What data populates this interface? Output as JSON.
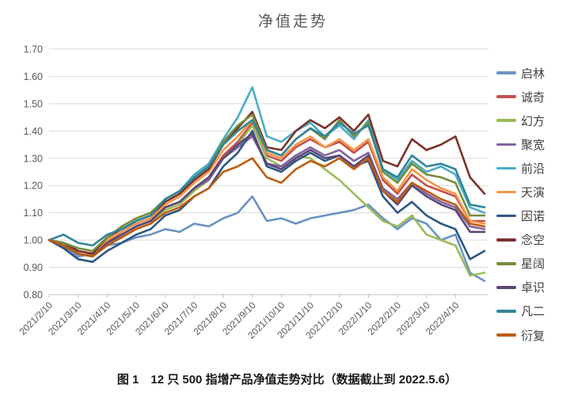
{
  "title": "净值走势",
  "caption": "图 1　12 只 500 指增产品净值走势对比（数据截止到 2022.5.6）",
  "axis": {
    "y_tick_labels": [
      "1.70",
      "1.60",
      "1.50",
      "1.40",
      "1.30",
      "1.20",
      "1.10",
      "1.00",
      "0.90",
      "0.80"
    ],
    "x_tick_labels": [
      "2021/2/10",
      "2021/3/10",
      "2021/4/10",
      "2021/5/10",
      "2021/6/10",
      "2021/7/10",
      "2021/8/10",
      "2021/9/10",
      "2021/10/10",
      "2021/11/10",
      "2021/12/10",
      "2022/1/10",
      "2022/2/10",
      "2022/3/10",
      "2022/4/10"
    ]
  },
  "style_colors": {
    "grid": "#d9d9d9",
    "axis_line": "#bfbfbf",
    "tick_text": "#595959",
    "title_text": "#595959"
  },
  "chart_data": {
    "type": "line",
    "title": "净值走势",
    "xlabel": "",
    "ylabel": "",
    "ylim": [
      0.8,
      1.7
    ],
    "y_tick_step": 0.1,
    "grid": "horizontal",
    "legend_position": "right",
    "x": [
      "2021/2/10",
      "2021/2/25",
      "2021/3/10",
      "2021/3/25",
      "2021/4/10",
      "2021/4/25",
      "2021/5/10",
      "2021/5/25",
      "2021/6/10",
      "2021/6/25",
      "2021/7/10",
      "2021/7/25",
      "2021/8/10",
      "2021/8/25",
      "2021/9/10",
      "2021/9/25",
      "2021/10/10",
      "2021/10/25",
      "2021/11/10",
      "2021/11/25",
      "2021/12/10",
      "2021/12/25",
      "2022/1/10",
      "2022/1/25",
      "2022/2/10",
      "2022/2/25",
      "2022/3/10",
      "2022/3/25",
      "2022/4/10",
      "2022/4/25",
      "2022/5/6"
    ],
    "series": [
      {
        "name": "启林",
        "color": "#6a92c6",
        "values": [
          1.0,
          0.98,
          0.94,
          0.95,
          0.98,
          0.99,
          1.01,
          1.02,
          1.04,
          1.03,
          1.06,
          1.05,
          1.08,
          1.1,
          1.16,
          1.07,
          1.08,
          1.06,
          1.08,
          1.09,
          1.1,
          1.11,
          1.13,
          1.08,
          1.04,
          1.08,
          1.06,
          1.0,
          1.02,
          0.88,
          0.85
        ]
      },
      {
        "name": "诚奇",
        "color": "#c0504d",
        "values": [
          1.0,
          0.97,
          0.96,
          0.95,
          1.0,
          1.02,
          1.05,
          1.07,
          1.12,
          1.14,
          1.19,
          1.23,
          1.31,
          1.36,
          1.43,
          1.31,
          1.29,
          1.34,
          1.37,
          1.34,
          1.36,
          1.32,
          1.36,
          1.22,
          1.17,
          1.24,
          1.2,
          1.18,
          1.16,
          1.07,
          1.07
        ]
      },
      {
        "name": "幻方",
        "color": "#9bbb59",
        "values": [
          1.0,
          0.98,
          0.95,
          0.94,
          0.99,
          1.01,
          1.04,
          1.06,
          1.11,
          1.13,
          1.18,
          1.22,
          1.3,
          1.35,
          1.42,
          1.3,
          1.27,
          1.31,
          1.3,
          1.26,
          1.22,
          1.17,
          1.12,
          1.07,
          1.05,
          1.09,
          1.02,
          1.0,
          0.98,
          0.87,
          0.88
        ]
      },
      {
        "name": "聚宽",
        "color": "#8064a2",
        "values": [
          1.0,
          0.98,
          0.95,
          0.94,
          0.99,
          1.02,
          1.05,
          1.07,
          1.12,
          1.14,
          1.19,
          1.22,
          1.3,
          1.34,
          1.38,
          1.28,
          1.27,
          1.31,
          1.34,
          1.31,
          1.33,
          1.29,
          1.32,
          1.19,
          1.15,
          1.21,
          1.17,
          1.14,
          1.12,
          1.05,
          1.04
        ]
      },
      {
        "name": "前沿",
        "color": "#4bacc6",
        "values": [
          1.0,
          0.98,
          0.96,
          0.95,
          1.0,
          1.03,
          1.07,
          1.09,
          1.15,
          1.18,
          1.24,
          1.28,
          1.37,
          1.45,
          1.56,
          1.38,
          1.36,
          1.4,
          1.43,
          1.38,
          1.42,
          1.37,
          1.44,
          1.26,
          1.22,
          1.29,
          1.25,
          1.27,
          1.24,
          1.12,
          1.1
        ]
      },
      {
        "name": "天演",
        "color": "#f79646",
        "values": [
          1.0,
          0.99,
          0.96,
          0.95,
          1.0,
          1.03,
          1.06,
          1.08,
          1.13,
          1.16,
          1.21,
          1.25,
          1.33,
          1.38,
          1.44,
          1.32,
          1.3,
          1.35,
          1.38,
          1.34,
          1.37,
          1.33,
          1.37,
          1.23,
          1.18,
          1.26,
          1.22,
          1.19,
          1.17,
          1.07,
          1.06
        ]
      },
      {
        "name": "因诺",
        "color": "#2c5784",
        "values": [
          1.0,
          0.97,
          0.93,
          0.92,
          0.96,
          0.99,
          1.02,
          1.04,
          1.09,
          1.11,
          1.16,
          1.19,
          1.27,
          1.32,
          1.4,
          1.27,
          1.25,
          1.29,
          1.32,
          1.29,
          1.31,
          1.27,
          1.29,
          1.16,
          1.1,
          1.14,
          1.09,
          1.06,
          1.04,
          0.93,
          0.96
        ]
      },
      {
        "name": "念空",
        "color": "#7b322c",
        "values": [
          1.0,
          0.99,
          0.96,
          0.95,
          1.01,
          1.04,
          1.07,
          1.09,
          1.14,
          1.17,
          1.22,
          1.26,
          1.35,
          1.41,
          1.47,
          1.34,
          1.33,
          1.4,
          1.44,
          1.41,
          1.45,
          1.4,
          1.46,
          1.29,
          1.27,
          1.37,
          1.33,
          1.35,
          1.38,
          1.23,
          1.17
        ]
      },
      {
        "name": "星阔",
        "color": "#748c3b",
        "values": [
          1.0,
          0.99,
          0.97,
          0.96,
          1.01,
          1.05,
          1.08,
          1.1,
          1.15,
          1.18,
          1.23,
          1.27,
          1.36,
          1.42,
          1.46,
          1.33,
          1.31,
          1.37,
          1.41,
          1.37,
          1.44,
          1.38,
          1.43,
          1.25,
          1.21,
          1.28,
          1.24,
          1.23,
          1.21,
          1.09,
          1.09
        ]
      },
      {
        "name": "卓识",
        "color": "#5c4776",
        "values": [
          1.0,
          0.98,
          0.95,
          0.94,
          0.99,
          1.02,
          1.05,
          1.07,
          1.12,
          1.14,
          1.19,
          1.23,
          1.3,
          1.35,
          1.39,
          1.28,
          1.26,
          1.3,
          1.33,
          1.3,
          1.31,
          1.27,
          1.31,
          1.18,
          1.13,
          1.2,
          1.16,
          1.13,
          1.11,
          1.03,
          1.03
        ]
      },
      {
        "name": "凡二",
        "color": "#31859b",
        "values": [
          1.0,
          1.02,
          0.99,
          0.98,
          1.02,
          1.04,
          1.07,
          1.09,
          1.15,
          1.18,
          1.23,
          1.27,
          1.35,
          1.4,
          1.44,
          1.33,
          1.31,
          1.37,
          1.41,
          1.38,
          1.43,
          1.39,
          1.42,
          1.26,
          1.23,
          1.31,
          1.27,
          1.28,
          1.26,
          1.13,
          1.12
        ]
      },
      {
        "name": "衍复",
        "color": "#be5b0e",
        "values": [
          1.0,
          0.98,
          0.95,
          0.94,
          0.98,
          1.01,
          1.04,
          1.06,
          1.1,
          1.12,
          1.16,
          1.19,
          1.25,
          1.27,
          1.3,
          1.23,
          1.21,
          1.26,
          1.29,
          1.27,
          1.3,
          1.26,
          1.3,
          1.18,
          1.14,
          1.21,
          1.18,
          1.15,
          1.13,
          1.06,
          1.05
        ]
      }
    ]
  }
}
